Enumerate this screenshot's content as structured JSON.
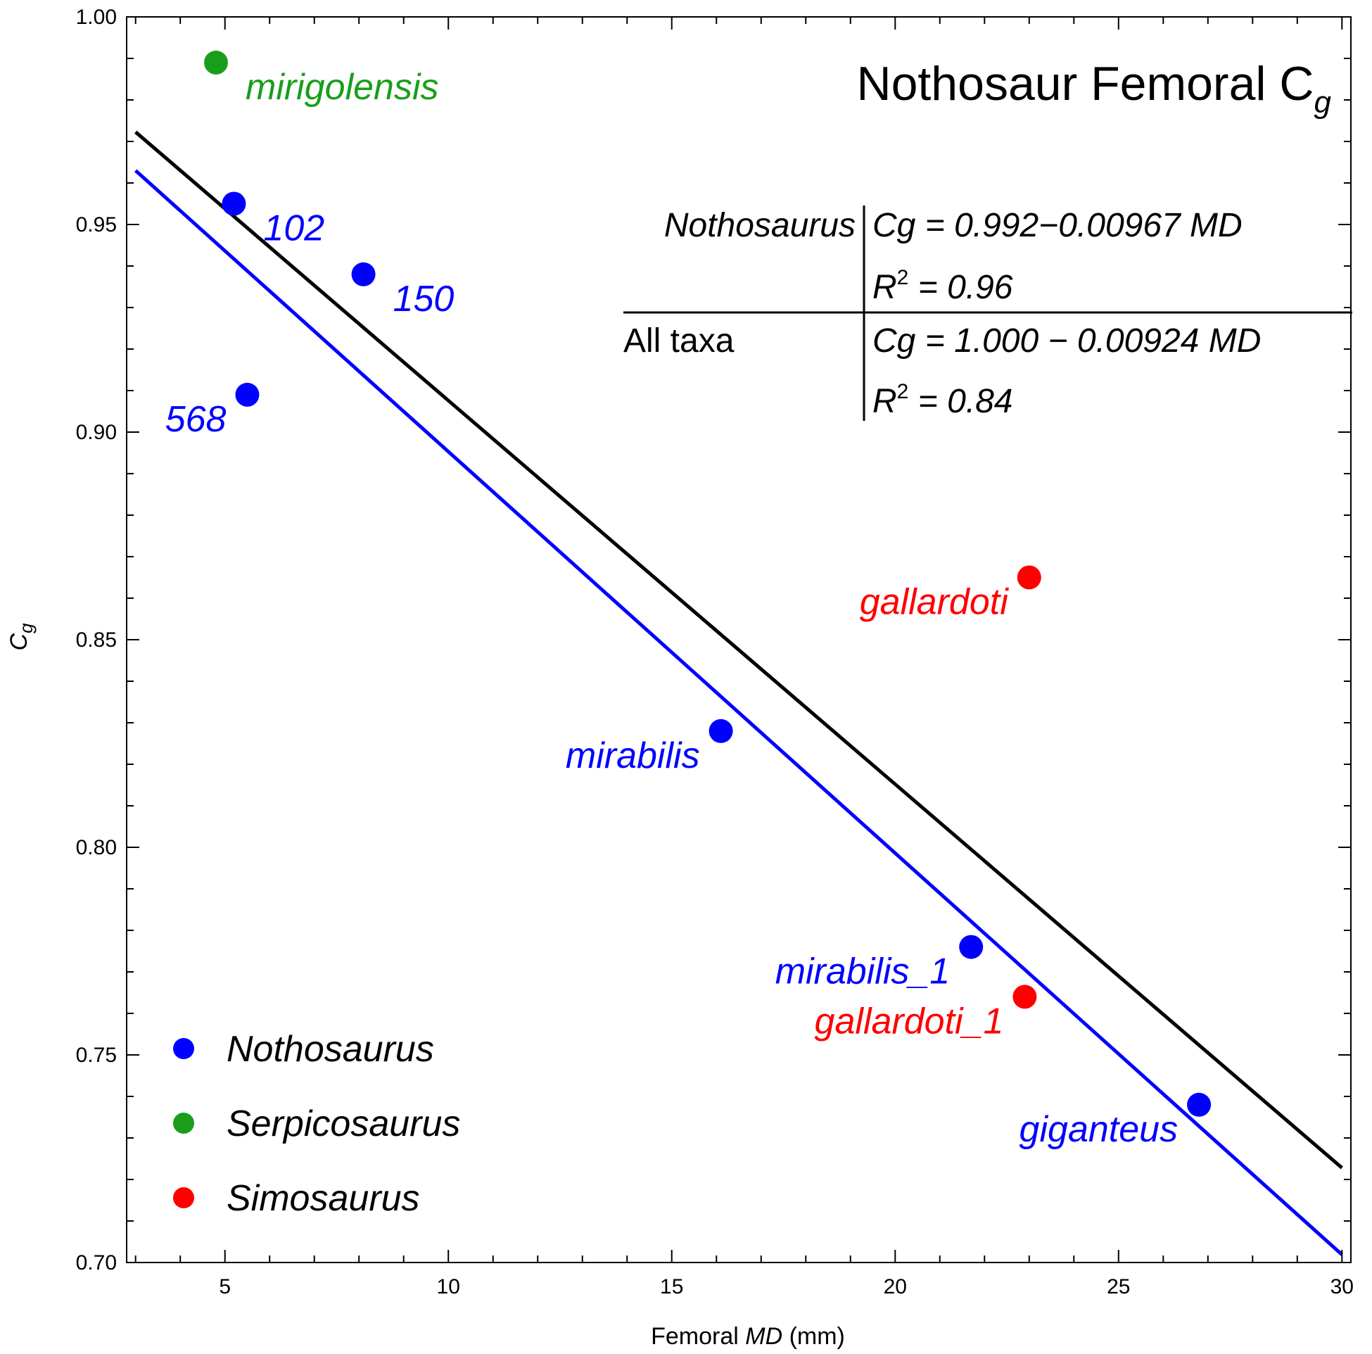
{
  "chart_data": {
    "type": "scatter",
    "title": "Nothosaur Femoral C",
    "title_sub": "g",
    "xlabel_pre": "Femoral ",
    "xlabel_it": "MD",
    "xlabel_post": " (mm)",
    "ylabel_main": "C",
    "ylabel_sub": "g",
    "xlim": [
      2.8,
      30.2
    ],
    "ylim": [
      0.7,
      1.0
    ],
    "xticks": [
      5,
      10,
      15,
      20,
      25,
      30
    ],
    "xtick_labels": [
      "5",
      "10",
      "15",
      "20",
      "25",
      "30"
    ],
    "yticks": [
      0.7,
      0.75,
      0.8,
      0.85,
      0.9,
      0.95,
      1.0
    ],
    "ytick_labels": [
      "0.70",
      "0.75",
      "0.80",
      "0.85",
      "0.90",
      "0.95",
      "1.00"
    ],
    "grid": false,
    "legend_position": "bottom-left",
    "groups": [
      {
        "name": "Nothosaurus",
        "color": "#0000ff"
      },
      {
        "name": "Serpicosaurus",
        "color": "#1a9e1a"
      },
      {
        "name": "Simosaurus",
        "color": "#ff0000"
      }
    ],
    "points": [
      {
        "x": 4.8,
        "y": 0.989,
        "label": "mirigolensis",
        "group": "Serpicosaurus",
        "color": "#1a9e1a",
        "label_pos": "right-below"
      },
      {
        "x": 5.2,
        "y": 0.955,
        "label": "102",
        "group": "Nothosaurus",
        "color": "#0000ff",
        "label_pos": "right-below"
      },
      {
        "x": 8.1,
        "y": 0.938,
        "label": "150",
        "group": "Nothosaurus",
        "color": "#0000ff",
        "label_pos": "right-below"
      },
      {
        "x": 5.5,
        "y": 0.909,
        "label": "568",
        "group": "Nothosaurus",
        "color": "#0000ff",
        "label_pos": "left-below"
      },
      {
        "x": 16.1,
        "y": 0.828,
        "label": "mirabilis",
        "group": "Nothosaurus",
        "color": "#0000ff",
        "label_pos": "left-below"
      },
      {
        "x": 23.0,
        "y": 0.865,
        "label": "gallardoti",
        "group": "Simosaurus",
        "color": "#ff0000",
        "label_pos": "left-below"
      },
      {
        "x": 21.7,
        "y": 0.776,
        "label": "mirabilis_1",
        "group": "Nothosaurus",
        "color": "#0000ff",
        "label_pos": "left-below"
      },
      {
        "x": 22.9,
        "y": 0.764,
        "label": "gallardoti_1",
        "group": "Simosaurus",
        "color": "#ff0000",
        "label_pos": "left-below"
      },
      {
        "x": 26.8,
        "y": 0.738,
        "label": "giganteus",
        "group": "Nothosaurus",
        "color": "#0000ff",
        "label_pos": "left-below"
      }
    ],
    "fits": [
      {
        "name": "Nothosaurus",
        "color": "#0000ff",
        "intercept": 0.992,
        "slope": -0.00967,
        "x_range": [
          3,
          30
        ]
      },
      {
        "name": "All taxa",
        "color": "#000000",
        "intercept": 1.0,
        "slope": -0.00924,
        "x_range": [
          3,
          30
        ]
      }
    ],
    "equation_table": [
      {
        "name": "Nothosaurus",
        "name_color": "#0000ff",
        "equation": "Cg = 0.992−0.00967 MD",
        "r2_label": "R",
        "r2_sup": "2",
        "r2_value": " = 0.96"
      },
      {
        "name": "All taxa",
        "name_color": "#000000",
        "equation": "Cg = 1.000 − 0.00924 MD",
        "r2_label": "R",
        "r2_sup": "2",
        "r2_value": " = 0.84"
      }
    ]
  }
}
